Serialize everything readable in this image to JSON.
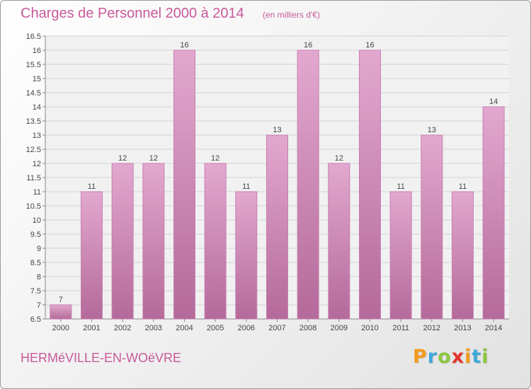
{
  "chart_data": {
    "type": "bar",
    "title": "Charges de Personnel 2000 à 2014",
    "subtitle": "(en milliers d'€)",
    "categories": [
      "2000",
      "2001",
      "2002",
      "2003",
      "2004",
      "2005",
      "2006",
      "2007",
      "2008",
      "2009",
      "2010",
      "2011",
      "2012",
      "2013",
      "2014"
    ],
    "values": [
      7,
      11,
      12,
      12,
      16,
      12,
      11,
      13,
      16,
      12,
      16,
      11,
      13,
      11,
      14
    ],
    "data_labels": [
      "7",
      "11",
      "12",
      "12",
      "16",
      "12",
      "11",
      "13",
      "16",
      "12",
      "16",
      "11",
      "13",
      "11",
      "14"
    ],
    "ylim": [
      6.5,
      16.5
    ],
    "yticks": [
      6.5,
      7,
      7.5,
      8,
      8.5,
      9,
      9.5,
      10,
      10.5,
      11,
      11.5,
      12,
      12.5,
      13,
      13.5,
      14,
      14.5,
      15,
      15.5,
      16,
      16.5
    ],
    "ytick_labels": [
      "6.5",
      "7",
      "7.5",
      "8",
      "8.5",
      "9",
      "9.5",
      "10",
      "10.5",
      "11",
      "11.5",
      "12",
      "12.5",
      "13",
      "13.5",
      "14",
      "14.5",
      "15",
      "15.5",
      "16",
      "16.5"
    ],
    "grid": true,
    "bar_color": "#d98fc0"
  },
  "footer": {
    "commune": "HERMéVILLE-EN-WOëVRE",
    "logo_letters": [
      "P",
      "r",
      "o",
      "x",
      "i",
      "t",
      "i"
    ],
    "logo_colors": [
      "#f39a1e",
      "#3ea7d8",
      "#8cc63f",
      "#e6332a",
      "#f39a1e",
      "#3ea7d8",
      "#8cc63f"
    ]
  }
}
